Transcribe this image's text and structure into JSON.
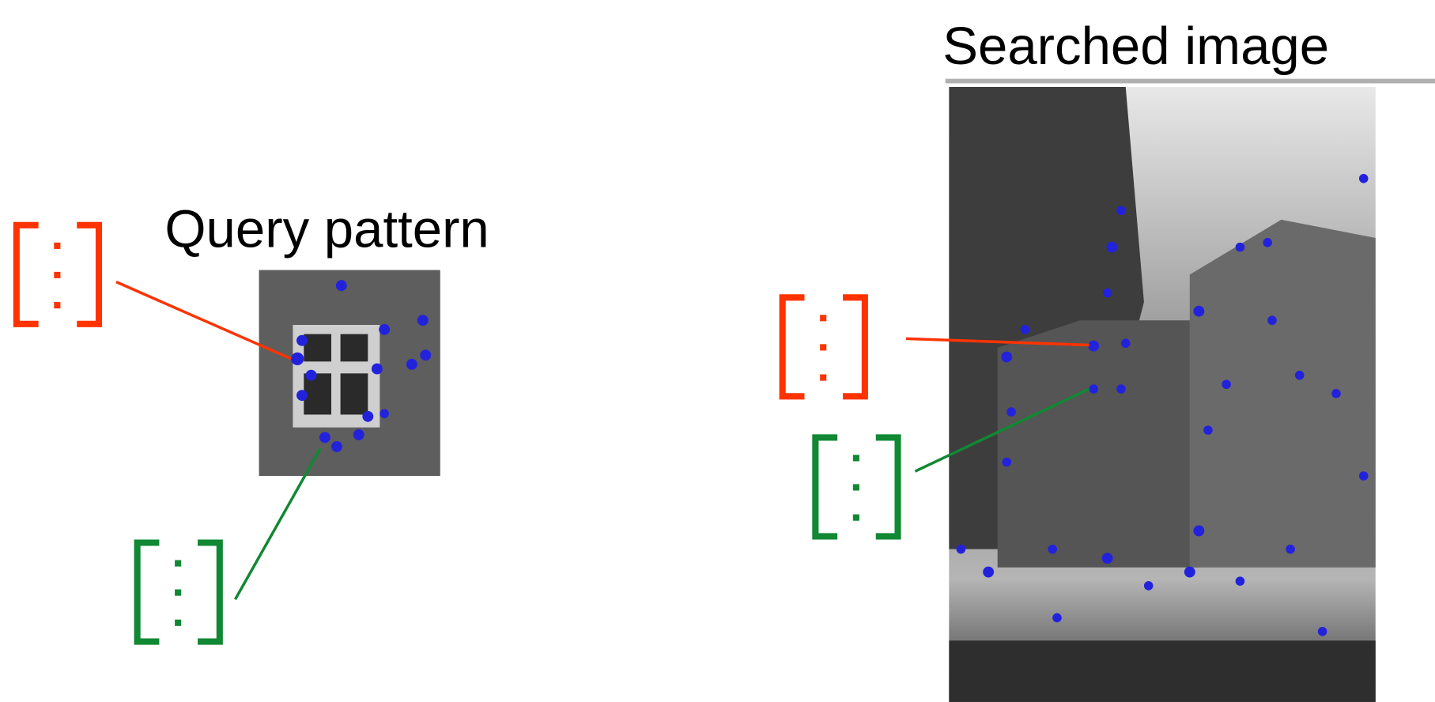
{
  "query": {
    "label": "Query pattern"
  },
  "searched": {
    "label": "Searched image"
  }
}
